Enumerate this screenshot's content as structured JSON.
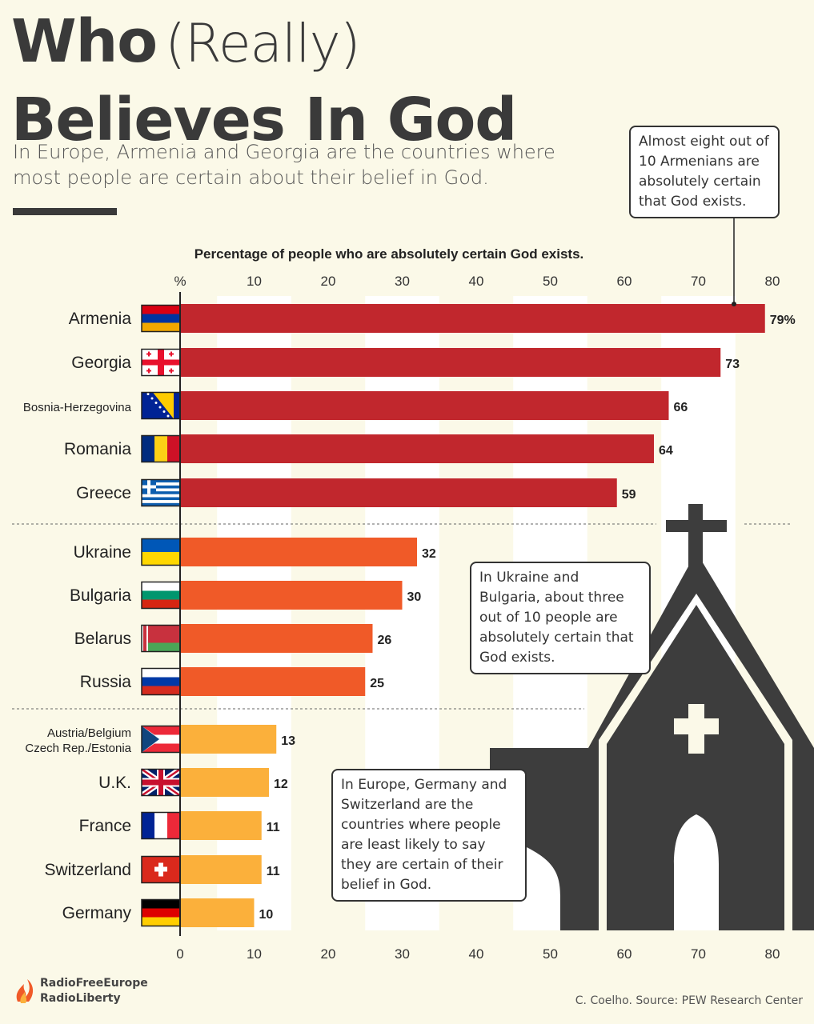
{
  "header": {
    "title_bold_1": "Who",
    "title_light": "(Really)",
    "title_bold_2": "Believes In God",
    "subtitle": "In Europe, Armenia and Georgia are the countries where most people are certain about their belief in God."
  },
  "callouts": {
    "armenia": "Almost eight out of 10 Armenians are absolutely certain that God exists.",
    "ukraine": "In Ukraine and Bulgaria, about three out of 10 people are absolutely certain that God exists.",
    "germany": "In Europe, Germany and Switzerland are the countries where people are least likely to say they are certain of their belief in God."
  },
  "footer": {
    "logo_line1": "RadioFreeEurope",
    "logo_line2": "RadioLiberty",
    "source": "C. Coelho. Source: PEW Research Center"
  },
  "colors": {
    "high": "#c1272d",
    "mid": "#f05a28",
    "low": "#fbb03b",
    "church": "#3d3d3d",
    "background": "#fbf9e8"
  },
  "chart_data": {
    "type": "bar",
    "orientation": "horizontal",
    "title": "Percentage of people who are absolutely certain God exists.",
    "top_first_tick_label": "%",
    "xlim": [
      0,
      80
    ],
    "xticks": [
      0,
      10,
      20,
      30,
      40,
      50,
      60,
      70,
      80
    ],
    "grid": "alternating vertical bands",
    "categories": [
      "Armenia",
      "Georgia",
      "Bosnia-Herzegovina",
      "Romania",
      "Greece",
      "Ukraine",
      "Bulgaria",
      "Belarus",
      "Russia",
      "Austria/Belgium Czech Rep./Estonia",
      "U.K.",
      "France",
      "Switzerland",
      "Germany"
    ],
    "values": [
      79,
      73,
      66,
      64,
      59,
      32,
      30,
      26,
      25,
      13,
      12,
      11,
      11,
      10
    ],
    "value_labels": [
      "79%",
      "73",
      "66",
      "64",
      "59",
      "32",
      "30",
      "26",
      "25",
      "13",
      "12",
      "11",
      "11",
      "10"
    ],
    "groups": [
      "high",
      "high",
      "high",
      "high",
      "high",
      "mid",
      "mid",
      "mid",
      "mid",
      "low",
      "low",
      "low",
      "low",
      "low"
    ],
    "flags": [
      "armenia",
      "georgia",
      "bosnia",
      "romania",
      "greece",
      "ukraine",
      "bulgaria",
      "belarus",
      "russia",
      "czech-austria",
      "uk",
      "france",
      "switzerland",
      "germany"
    ]
  }
}
